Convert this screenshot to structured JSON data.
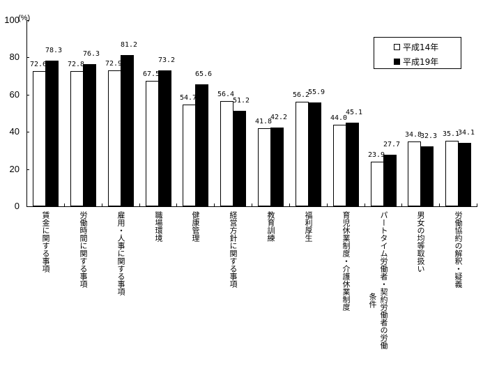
{
  "chart_data": {
    "type": "bar",
    "title": "",
    "xlabel": "",
    "ylabel": "(%)",
    "ylim": [
      0,
      100
    ],
    "yticks": [
      0,
      20,
      40,
      60,
      80,
      100
    ],
    "grid": false,
    "legend_position": "top-right",
    "categories": [
      "賃金に関する事項",
      "労働時間に関する事項",
      "雇用・人事に関する事項",
      "職場環境",
      "健康管理",
      "経営方針に関する事項",
      "教育訓練",
      "福利厚生",
      "育児休業制度・介護休業制度",
      "パートタイム労働者・契約労働者の労働条件",
      "男女の均等取扱い",
      "労働協約の解釈・疑義"
    ],
    "series": [
      {
        "name": "平成14年",
        "color": "#ffffff",
        "values": [
          72.6,
          72.8,
          72.9,
          67.5,
          54.7,
          56.4,
          41.8,
          56.2,
          44.0,
          23.9,
          34.8,
          35.1
        ]
      },
      {
        "name": "平成19年",
        "color": "#000000",
        "values": [
          78.3,
          76.3,
          81.2,
          73.2,
          65.6,
          51.2,
          42.2,
          55.9,
          45.1,
          27.7,
          32.3,
          34.1
        ]
      }
    ],
    "value_labels": [
      [
        "72.6",
        "72.8",
        "72.9",
        "67.5",
        "54.7",
        "56.4",
        "41.8",
        "56.2",
        "44.0",
        "23.9",
        "34.8",
        "35.1"
      ],
      [
        "78.3",
        "76.3",
        "81.2",
        "73.2",
        "65.6",
        "51.2",
        "42.2",
        "55.9",
        "45.1",
        "27.7",
        "32.3",
        "34.1"
      ]
    ],
    "category_label_columns": [
      [
        "賃金に関する事項"
      ],
      [
        "労働時間に関する事項"
      ],
      [
        "雇用・人事に関する事項"
      ],
      [
        "職場環境"
      ],
      [
        "健康管理"
      ],
      [
        "経営方針に関する事項"
      ],
      [
        "教育訓練"
      ],
      [
        "福利厚生"
      ],
      [
        "育児休業制度・介護休業制度"
      ],
      [
        "パートタイム労働者・契約労働者の労働",
        "条件"
      ],
      [
        "男女の均等取扱い"
      ],
      [
        "労働協約の解釈・疑義"
      ]
    ]
  },
  "legend": {
    "items": [
      {
        "label": "平成14年",
        "symbol": "□"
      },
      {
        "label": "平成19年",
        "symbol": "■"
      }
    ]
  }
}
